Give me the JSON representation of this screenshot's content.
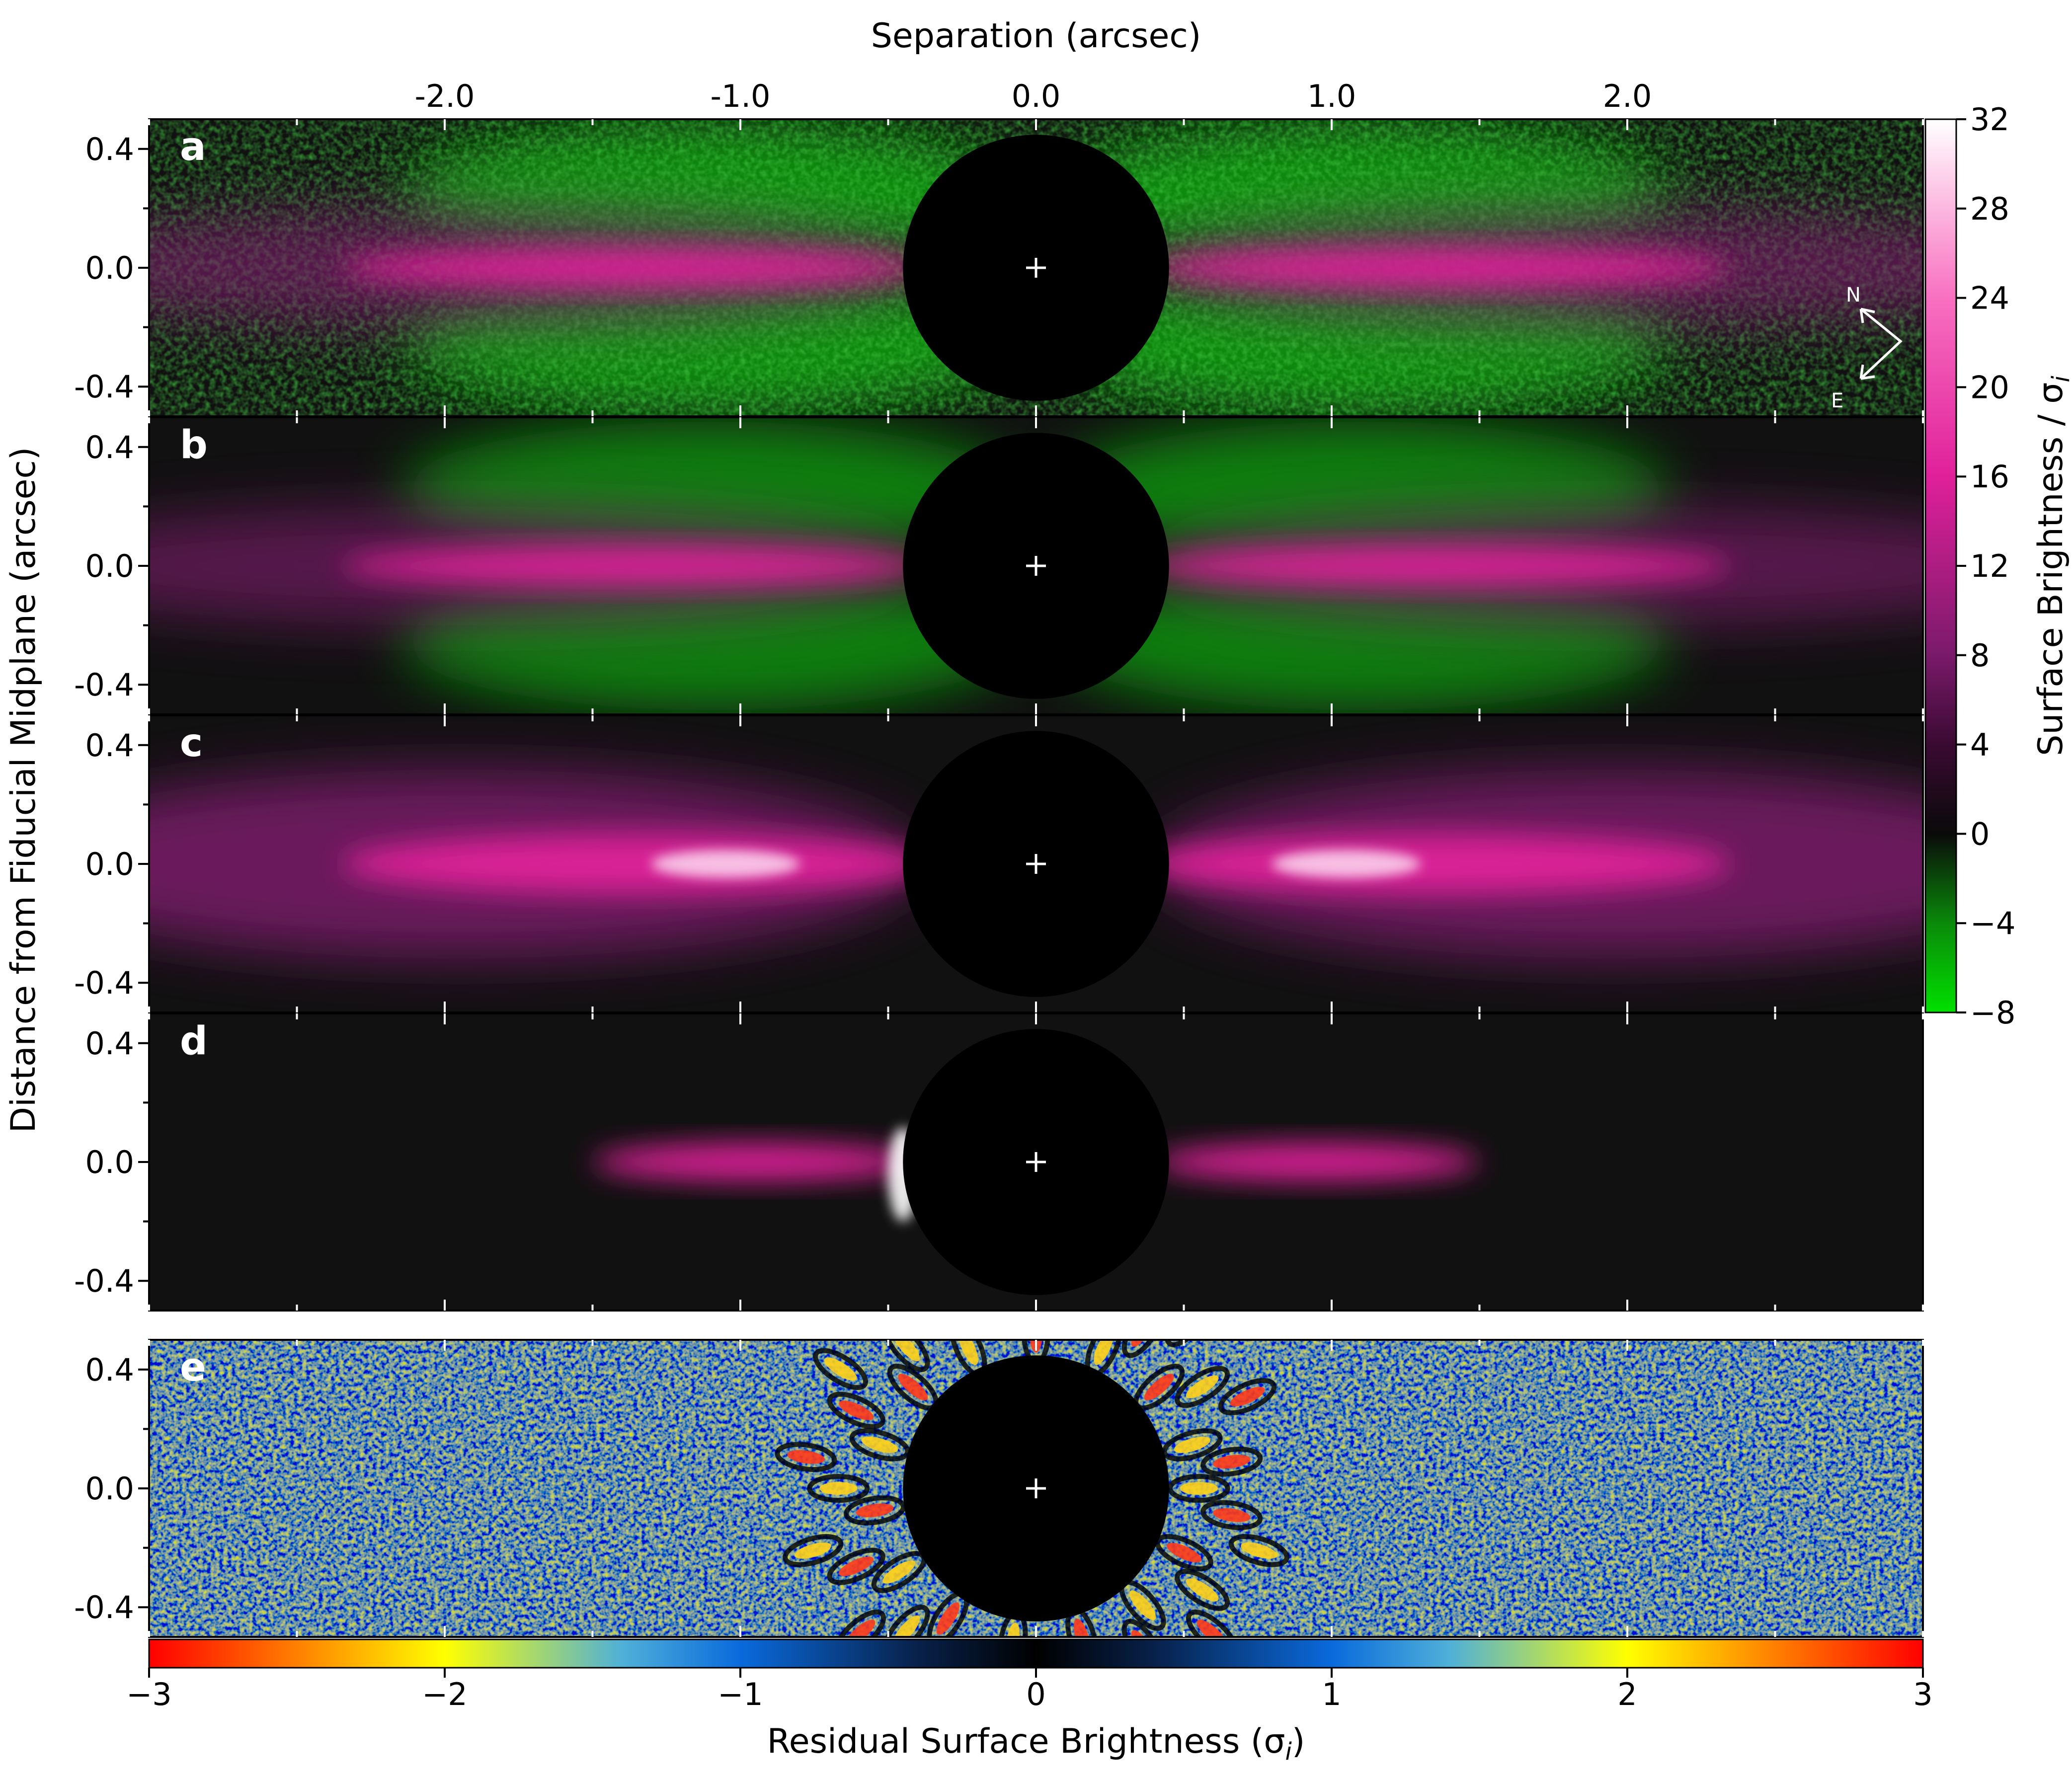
{
  "chart_data": {
    "type": "heatmap",
    "panels": [
      {
        "id": "a",
        "label": "a",
        "content": "data",
        "ylim": [
          -0.5,
          0.5
        ],
        "colorscale": "surface"
      },
      {
        "id": "b",
        "label": "b",
        "content": "model",
        "ylim": [
          -0.5,
          0.5
        ],
        "colorscale": "surface"
      },
      {
        "id": "c",
        "label": "c",
        "content": "model",
        "ylim": [
          -0.5,
          0.5
        ],
        "colorscale": "surface"
      },
      {
        "id": "d",
        "label": "d",
        "content": "model",
        "ylim": [
          -0.5,
          0.5
        ],
        "colorscale": "surface"
      },
      {
        "id": "e",
        "label": "e",
        "content": "residual",
        "ylim": [
          -0.5,
          0.5
        ],
        "colorscale": "residual"
      }
    ],
    "xlabel": "Separation (arcsec)",
    "ylabel": "Distance from Fiducial Midplane (arcsec)",
    "xlim": [
      -3.0,
      3.0
    ],
    "x_ticks": [
      -2.0,
      -1.0,
      0.0,
      1.0,
      2.0
    ],
    "x_tick_labels": [
      "-2.0",
      "-1.0",
      "0.0",
      "1.0",
      "2.0"
    ],
    "y_ticks": [
      0.4,
      0.0,
      -0.4
    ],
    "y_tick_labels": [
      "0.4",
      "0.0",
      "-0.4"
    ],
    "mask_radius_arcsec": 0.45,
    "compass": {
      "north": "N",
      "east": "E"
    },
    "colorbar_surface": {
      "label": "Surface Brightness / σ",
      "label_subscript": "i",
      "range": [
        -8,
        32
      ],
      "ticks": [
        32,
        28,
        24,
        20,
        16,
        12,
        8,
        4,
        0,
        -4,
        -8
      ],
      "tick_labels": [
        "32",
        "28",
        "24",
        "20",
        "16",
        "12",
        "8",
        "4",
        "0",
        "−4",
        "−8"
      ],
      "stops": [
        {
          "value": -8,
          "color": "#00e000"
        },
        {
          "value": -4,
          "color": "#0a8a0a"
        },
        {
          "value": 0,
          "color": "#0a0a0a"
        },
        {
          "value": 4,
          "color": "#3a0a32"
        },
        {
          "value": 8,
          "color": "#7a1a6a"
        },
        {
          "value": 16,
          "color": "#e0209a"
        },
        {
          "value": 24,
          "color": "#f870c0"
        },
        {
          "value": 32,
          "color": "#ffffff"
        }
      ]
    },
    "colorbar_residual": {
      "label": "Residual Surface Brightness (σ",
      "label_subscript": "i",
      "label_close": ")",
      "range": [
        -3,
        3
      ],
      "ticks": [
        -3,
        -2,
        -1,
        0,
        1,
        2,
        3
      ],
      "tick_labels": [
        "−3",
        "−2",
        "−1",
        "0",
        "1",
        "2",
        "3"
      ],
      "stops": [
        {
          "value": -3,
          "color": "#ff0000"
        },
        {
          "value": -2.4,
          "color": "#ff9900"
        },
        {
          "value": -2,
          "color": "#ffff00"
        },
        {
          "value": -1.4,
          "color": "#4fb0d8"
        },
        {
          "value": -1,
          "color": "#0a6adc"
        },
        {
          "value": -0.4,
          "color": "#08214a"
        },
        {
          "value": 0,
          "color": "#000000"
        },
        {
          "value": 0.4,
          "color": "#08214a"
        },
        {
          "value": 1,
          "color": "#0a6adc"
        },
        {
          "value": 1.4,
          "color": "#4fb0d8"
        },
        {
          "value": 2,
          "color": "#ffff00"
        },
        {
          "value": 2.4,
          "color": "#ff9900"
        },
        {
          "value": 3,
          "color": "#ff0000"
        }
      ]
    }
  }
}
